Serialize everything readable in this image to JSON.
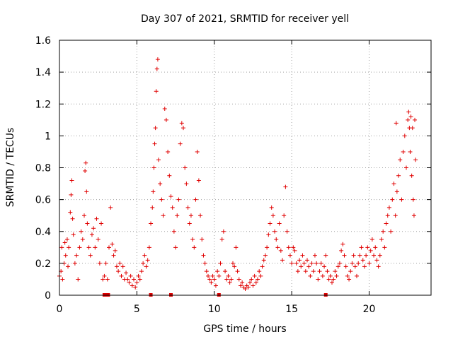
{
  "chart_data": {
    "type": "scatter",
    "title": "Day 307 of 2021, SRMTID for receiver yell",
    "xlabel": "GPS time / hours",
    "ylabel": "SRMTID / TECUs",
    "xlim": [
      0,
      24
    ],
    "ylim": [
      0,
      1.6
    ],
    "x_ticks": [
      0,
      5,
      10,
      15,
      20
    ],
    "x_tick_labels": [
      "0",
      "5",
      "10",
      "15",
      "20"
    ],
    "y_ticks": [
      0,
      0.2,
      0.4,
      0.6,
      0.8,
      1.0,
      1.2,
      1.4,
      1.6
    ],
    "y_tick_labels": [
      "0",
      "0.2",
      "0.4",
      "0.6",
      "0.8",
      "1",
      "1.2",
      "1.4",
      "1.6"
    ],
    "grid": true,
    "marker": "+",
    "color": "#e00000",
    "series": [
      {
        "name": "SRMTID",
        "points": [
          [
            0.0,
            0.12
          ],
          [
            0.1,
            0.15
          ],
          [
            0.15,
            0.3
          ],
          [
            0.2,
            0.1
          ],
          [
            0.3,
            0.2
          ],
          [
            0.35,
            0.33
          ],
          [
            0.4,
            0.25
          ],
          [
            0.5,
            0.35
          ],
          [
            0.55,
            0.18
          ],
          [
            0.6,
            0.3
          ],
          [
            0.7,
            0.52
          ],
          [
            0.75,
            0.63
          ],
          [
            0.8,
            0.72
          ],
          [
            0.85,
            0.48
          ],
          [
            0.9,
            0.38
          ],
          [
            1.0,
            0.2
          ],
          [
            1.1,
            0.25
          ],
          [
            1.2,
            0.1
          ],
          [
            1.3,
            0.3
          ],
          [
            1.4,
            0.4
          ],
          [
            1.5,
            0.35
          ],
          [
            1.6,
            0.5
          ],
          [
            1.65,
            0.78
          ],
          [
            1.7,
            0.83
          ],
          [
            1.75,
            0.65
          ],
          [
            1.8,
            0.45
          ],
          [
            1.9,
            0.3
          ],
          [
            2.0,
            0.25
          ],
          [
            2.1,
            0.38
          ],
          [
            2.2,
            0.42
          ],
          [
            2.3,
            0.3
          ],
          [
            2.4,
            0.48
          ],
          [
            2.5,
            0.35
          ],
          [
            2.6,
            0.2
          ],
          [
            2.7,
            0.45
          ],
          [
            2.8,
            0.1
          ],
          [
            2.9,
            0.12
          ],
          [
            3.0,
            0.2
          ],
          [
            3.1,
            0.1
          ],
          [
            3.2,
            0.3
          ],
          [
            3.3,
            0.55
          ],
          [
            3.4,
            0.32
          ],
          [
            3.5,
            0.25
          ],
          [
            3.6,
            0.28
          ],
          [
            3.7,
            0.18
          ],
          [
            3.8,
            0.15
          ],
          [
            3.9,
            0.2
          ],
          [
            4.0,
            0.12
          ],
          [
            4.1,
            0.18
          ],
          [
            4.2,
            0.1
          ],
          [
            4.3,
            0.14
          ],
          [
            4.4,
            0.1
          ],
          [
            4.5,
            0.08
          ],
          [
            4.6,
            0.12
          ],
          [
            4.7,
            0.06
          ],
          [
            4.8,
            0.1
          ],
          [
            4.9,
            0.05
          ],
          [
            5.0,
            0.08
          ],
          [
            5.1,
            0.12
          ],
          [
            5.2,
            0.1
          ],
          [
            5.3,
            0.15
          ],
          [
            5.4,
            0.2
          ],
          [
            5.5,
            0.25
          ],
          [
            5.6,
            0.18
          ],
          [
            5.7,
            0.22
          ],
          [
            5.8,
            0.3
          ],
          [
            5.9,
            0.45
          ],
          [
            6.0,
            0.55
          ],
          [
            6.05,
            0.65
          ],
          [
            6.1,
            0.8
          ],
          [
            6.15,
            0.95
          ],
          [
            6.2,
            1.05
          ],
          [
            6.25,
            1.28
          ],
          [
            6.3,
            1.42
          ],
          [
            6.35,
            1.48
          ],
          [
            6.4,
            0.85
          ],
          [
            6.5,
            0.7
          ],
          [
            6.6,
            0.6
          ],
          [
            6.7,
            0.5
          ],
          [
            6.8,
            1.17
          ],
          [
            6.9,
            1.1
          ],
          [
            7.0,
            0.9
          ],
          [
            7.1,
            0.75
          ],
          [
            7.2,
            0.62
          ],
          [
            7.3,
            0.55
          ],
          [
            7.4,
            0.4
          ],
          [
            7.5,
            0.3
          ],
          [
            7.6,
            0.5
          ],
          [
            7.7,
            0.6
          ],
          [
            7.8,
            0.95
          ],
          [
            7.9,
            1.08
          ],
          [
            8.0,
            1.05
          ],
          [
            8.1,
            0.8
          ],
          [
            8.2,
            0.7
          ],
          [
            8.3,
            0.55
          ],
          [
            8.4,
            0.45
          ],
          [
            8.5,
            0.5
          ],
          [
            8.6,
            0.35
          ],
          [
            8.7,
            0.3
          ],
          [
            8.8,
            0.6
          ],
          [
            8.9,
            0.9
          ],
          [
            9.0,
            0.72
          ],
          [
            9.1,
            0.5
          ],
          [
            9.2,
            0.35
          ],
          [
            9.3,
            0.25
          ],
          [
            9.4,
            0.2
          ],
          [
            9.5,
            0.15
          ],
          [
            9.6,
            0.12
          ],
          [
            9.7,
            0.1
          ],
          [
            9.8,
            0.08
          ],
          [
            9.9,
            0.12
          ],
          [
            10.0,
            0.1
          ],
          [
            10.1,
            0.06
          ],
          [
            10.2,
            0.15
          ],
          [
            10.3,
            0.12
          ],
          [
            10.4,
            0.2
          ],
          [
            10.5,
            0.35
          ],
          [
            10.6,
            0.4
          ],
          [
            10.7,
            0.15
          ],
          [
            10.8,
            0.1
          ],
          [
            10.9,
            0.12
          ],
          [
            11.0,
            0.08
          ],
          [
            11.1,
            0.1
          ],
          [
            11.2,
            0.2
          ],
          [
            11.3,
            0.18
          ],
          [
            11.4,
            0.3
          ],
          [
            11.5,
            0.15
          ],
          [
            11.6,
            0.1
          ],
          [
            11.7,
            0.06
          ],
          [
            11.8,
            0.08
          ],
          [
            11.9,
            0.05
          ],
          [
            12.0,
            0.04
          ],
          [
            12.1,
            0.06
          ],
          [
            12.2,
            0.05
          ],
          [
            12.3,
            0.08
          ],
          [
            12.4,
            0.1
          ],
          [
            12.5,
            0.06
          ],
          [
            12.6,
            0.12
          ],
          [
            12.7,
            0.08
          ],
          [
            12.8,
            0.1
          ],
          [
            12.9,
            0.15
          ],
          [
            13.0,
            0.12
          ],
          [
            13.1,
            0.18
          ],
          [
            13.2,
            0.22
          ],
          [
            13.3,
            0.25
          ],
          [
            13.4,
            0.3
          ],
          [
            13.5,
            0.38
          ],
          [
            13.6,
            0.45
          ],
          [
            13.7,
            0.55
          ],
          [
            13.8,
            0.5
          ],
          [
            13.9,
            0.4
          ],
          [
            14.0,
            0.35
          ],
          [
            14.1,
            0.3
          ],
          [
            14.2,
            0.45
          ],
          [
            14.3,
            0.28
          ],
          [
            14.4,
            0.22
          ],
          [
            14.5,
            0.5
          ],
          [
            14.6,
            0.68
          ],
          [
            14.7,
            0.4
          ],
          [
            14.8,
            0.3
          ],
          [
            14.9,
            0.25
          ],
          [
            15.0,
            0.2
          ],
          [
            15.1,
            0.3
          ],
          [
            15.2,
            0.28
          ],
          [
            15.3,
            0.2
          ],
          [
            15.4,
            0.15
          ],
          [
            15.5,
            0.22
          ],
          [
            15.6,
            0.18
          ],
          [
            15.7,
            0.25
          ],
          [
            15.8,
            0.2
          ],
          [
            15.9,
            0.15
          ],
          [
            16.0,
            0.22
          ],
          [
            16.1,
            0.18
          ],
          [
            16.2,
            0.12
          ],
          [
            16.3,
            0.2
          ],
          [
            16.4,
            0.15
          ],
          [
            16.5,
            0.25
          ],
          [
            16.6,
            0.2
          ],
          [
            16.7,
            0.1
          ],
          [
            16.8,
            0.15
          ],
          [
            16.9,
            0.2
          ],
          [
            17.0,
            0.12
          ],
          [
            17.1,
            0.18
          ],
          [
            17.2,
            0.25
          ],
          [
            17.3,
            0.15
          ],
          [
            17.4,
            0.1
          ],
          [
            17.5,
            0.12
          ],
          [
            17.6,
            0.08
          ],
          [
            17.7,
            0.1
          ],
          [
            17.8,
            0.15
          ],
          [
            17.9,
            0.12
          ],
          [
            18.0,
            0.18
          ],
          [
            18.1,
            0.2
          ],
          [
            18.2,
            0.28
          ],
          [
            18.3,
            0.32
          ],
          [
            18.4,
            0.25
          ],
          [
            18.5,
            0.18
          ],
          [
            18.6,
            0.12
          ],
          [
            18.7,
            0.1
          ],
          [
            18.8,
            0.15
          ],
          [
            18.9,
            0.2
          ],
          [
            19.0,
            0.25
          ],
          [
            19.1,
            0.18
          ],
          [
            19.2,
            0.12
          ],
          [
            19.3,
            0.2
          ],
          [
            19.4,
            0.25
          ],
          [
            19.5,
            0.3
          ],
          [
            19.6,
            0.22
          ],
          [
            19.7,
            0.18
          ],
          [
            19.8,
            0.25
          ],
          [
            19.9,
            0.3
          ],
          [
            20.0,
            0.2
          ],
          [
            20.1,
            0.28
          ],
          [
            20.2,
            0.35
          ],
          [
            20.3,
            0.25
          ],
          [
            20.4,
            0.3
          ],
          [
            20.5,
            0.22
          ],
          [
            20.6,
            0.18
          ],
          [
            20.7,
            0.25
          ],
          [
            20.8,
            0.35
          ],
          [
            20.9,
            0.4
          ],
          [
            21.0,
            0.3
          ],
          [
            21.1,
            0.45
          ],
          [
            21.2,
            0.5
          ],
          [
            21.3,
            0.55
          ],
          [
            21.4,
            0.4
          ],
          [
            21.5,
            0.6
          ],
          [
            21.6,
            0.7
          ],
          [
            21.7,
            0.5
          ],
          [
            21.75,
            1.08
          ],
          [
            21.8,
            0.65
          ],
          [
            21.9,
            0.75
          ],
          [
            22.0,
            0.85
          ],
          [
            22.1,
            0.6
          ],
          [
            22.2,
            0.9
          ],
          [
            22.3,
            1.0
          ],
          [
            22.4,
            0.8
          ],
          [
            22.5,
            1.1
          ],
          [
            22.55,
            1.15
          ],
          [
            22.6,
            1.05
          ],
          [
            22.65,
            0.9
          ],
          [
            22.7,
            1.12
          ],
          [
            22.75,
            0.75
          ],
          [
            22.8,
            1.05
          ],
          [
            22.85,
            0.6
          ],
          [
            22.9,
            0.5
          ],
          [
            22.95,
            1.1
          ],
          [
            23.0,
            0.85
          ]
        ]
      }
    ],
    "zero_markers_x": [
      2.9,
      3.0,
      3.1,
      3.15,
      5.9,
      7.2,
      10.3,
      17.2
    ]
  }
}
